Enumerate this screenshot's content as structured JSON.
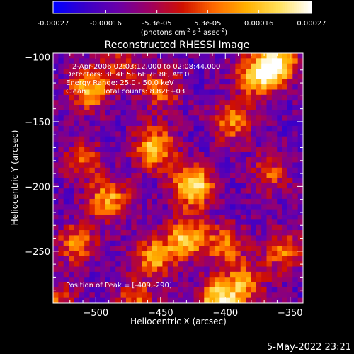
{
  "colorbar": {
    "tick_labels": [
      "-0.00027",
      "-0.00016",
      "-5.3e-05",
      "5.3e-05",
      "0.00016",
      "0.00027"
    ],
    "tick_values": [
      -0.00027,
      -0.00016,
      -5.3e-05,
      5.3e-05,
      0.00016,
      0.00027
    ],
    "range": [
      -0.00027,
      0.00027
    ],
    "units_main": "(photons cm",
    "units_exp1": "-2",
    "units_mid": " s",
    "units_exp2": "-1",
    "units_tail": " asec",
    "units_exp3": "-2",
    "units_close": ")",
    "colormap": [
      "#0000ff",
      "#3a00c8",
      "#6a00a8",
      "#a00060",
      "#d01000",
      "#ff6a00",
      "#ffb000",
      "#ffe05a",
      "#ffffff"
    ]
  },
  "chart_data": {
    "type": "heatmap",
    "title": "Reconstructed RHESSI Image",
    "xlabel": "Heliocentric X (arcsec)",
    "ylabel": "Heliocentric Y (arcsec)",
    "xlim": [
      -533,
      -340
    ],
    "ylim": [
      -290,
      -97
    ],
    "x_ticks": [
      -500,
      -450,
      -400,
      -350
    ],
    "x_tick_labels": [
      "−500",
      "−450",
      "−400",
      "−350"
    ],
    "y_ticks": [
      -100,
      -150,
      -200,
      -250
    ],
    "y_tick_labels": [
      "−100",
      "−150",
      "−200",
      "−250"
    ],
    "annotations": {
      "time": "2-Apr-2006 02:03:12.000 to 02:08:44.000",
      "detectors": "Detectors: 3F 4F 5F 6F 7F 8F, Att 0",
      "energy": "Energy Range: 25.0 - 50.0 keV",
      "method": "Clean",
      "counts": "Total counts: 8.82E+03",
      "peak": "Position of Peak = [-409,-290]"
    },
    "peak": [
      -409,
      -290
    ],
    "blobs": [
      {
        "x": -425,
        "y": -200,
        "v": 1.0
      },
      {
        "x": -455,
        "y": -170,
        "v": 0.85
      },
      {
        "x": -490,
        "y": -210,
        "v": 0.7
      },
      {
        "x": -505,
        "y": -125,
        "v": 0.75
      },
      {
        "x": -450,
        "y": -125,
        "v": 0.55
      },
      {
        "x": -395,
        "y": -150,
        "v": 0.6
      },
      {
        "x": -375,
        "y": -115,
        "v": 0.8
      },
      {
        "x": -360,
        "y": -105,
        "v": 0.9
      },
      {
        "x": -430,
        "y": -240,
        "v": 0.8
      },
      {
        "x": -455,
        "y": -255,
        "v": 0.7
      },
      {
        "x": -400,
        "y": -245,
        "v": 0.55
      },
      {
        "x": -385,
        "y": -275,
        "v": 0.6
      },
      {
        "x": -405,
        "y": -288,
        "v": 0.95
      },
      {
        "x": -515,
        "y": -245,
        "v": 0.6
      },
      {
        "x": -510,
        "y": -180,
        "v": 0.45
      },
      {
        "x": -470,
        "y": -290,
        "v": 0.5
      },
      {
        "x": -355,
        "y": -250,
        "v": 0.55
      },
      {
        "x": -365,
        "y": -190,
        "v": 0.45
      },
      {
        "x": -480,
        "y": -105,
        "v": 0.4
      },
      {
        "x": -530,
        "y": -290,
        "v": 0.45
      }
    ]
  },
  "timestamp": "5-May-2022 23:21"
}
